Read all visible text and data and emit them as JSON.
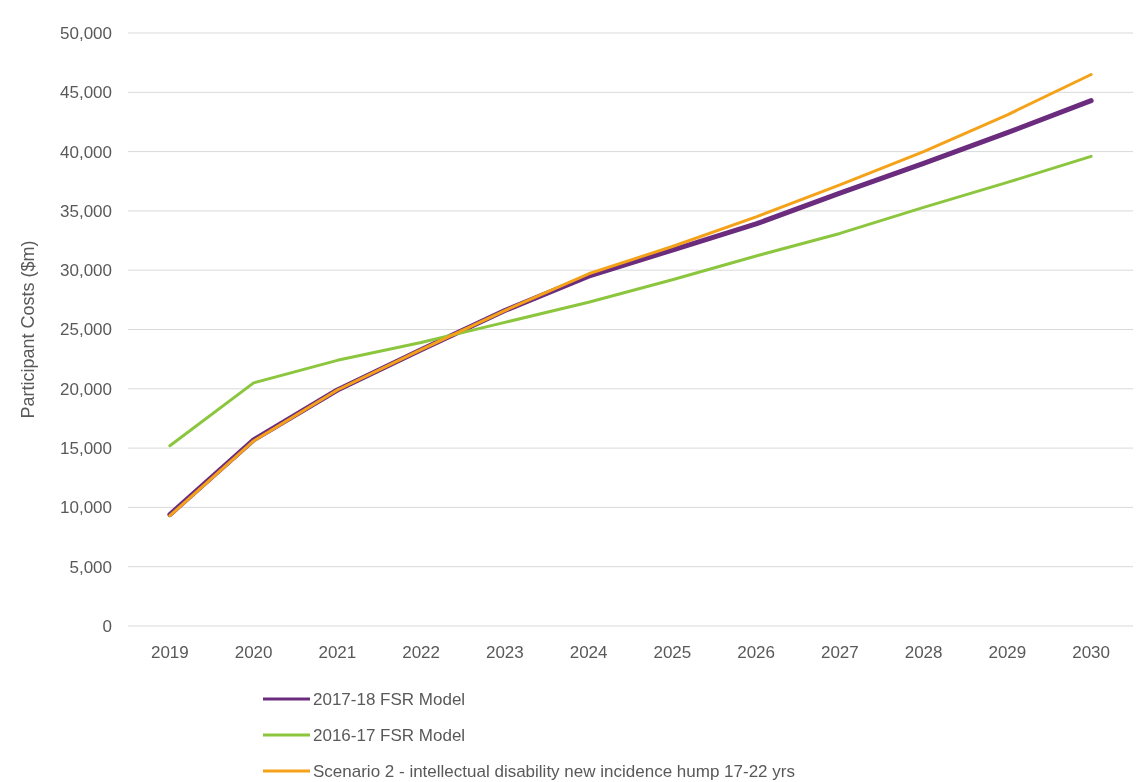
{
  "chart_data": {
    "type": "line",
    "ylabel": "Participant Costs ($m)",
    "categories": [
      "2019",
      "2020",
      "2021",
      "2022",
      "2023",
      "2024",
      "2025",
      "2026",
      "2027",
      "2028",
      "2029",
      "2030"
    ],
    "series": [
      {
        "name": "2017-18 FSR Model",
        "color": "#6b2c7e",
        "values": [
          9400,
          15700,
          19900,
          23300,
          26600,
          29500,
          31700,
          33900,
          36500,
          39000,
          41600,
          44300
        ]
      },
      {
        "name": "2016-17 FSR Model",
        "color": "#8cc63f",
        "values": [
          15200,
          20500,
          22400,
          23900,
          25600,
          27300,
          29200,
          31200,
          33100,
          35300,
          37400,
          39600
        ]
      },
      {
        "name": "Scenario 2 - intellectual disability new incidence hump 17-22 yrs",
        "color": "#f5a21b",
        "values": [
          9300,
          15600,
          19900,
          23300,
          26600,
          29700,
          32000,
          34500,
          37200,
          40000,
          43100,
          46500
        ]
      }
    ],
    "ylim": [
      0,
      50000
    ],
    "yticks": [
      {
        "value": 0,
        "label": "0"
      },
      {
        "value": 5000,
        "label": "5,000"
      },
      {
        "value": 10000,
        "label": "10,000"
      },
      {
        "value": 15000,
        "label": "15,000"
      },
      {
        "value": 20000,
        "label": "20,000"
      },
      {
        "value": 25000,
        "label": "25,000"
      },
      {
        "value": 30000,
        "label": "30,000"
      },
      {
        "value": 35000,
        "label": "35,000"
      },
      {
        "value": 40000,
        "label": "40,000"
      },
      {
        "value": 45000,
        "label": "45,000"
      },
      {
        "value": 50000,
        "label": "50,000"
      }
    ],
    "grid": "y",
    "legend": "bottom",
    "marker": "none",
    "line_style": "solid"
  }
}
